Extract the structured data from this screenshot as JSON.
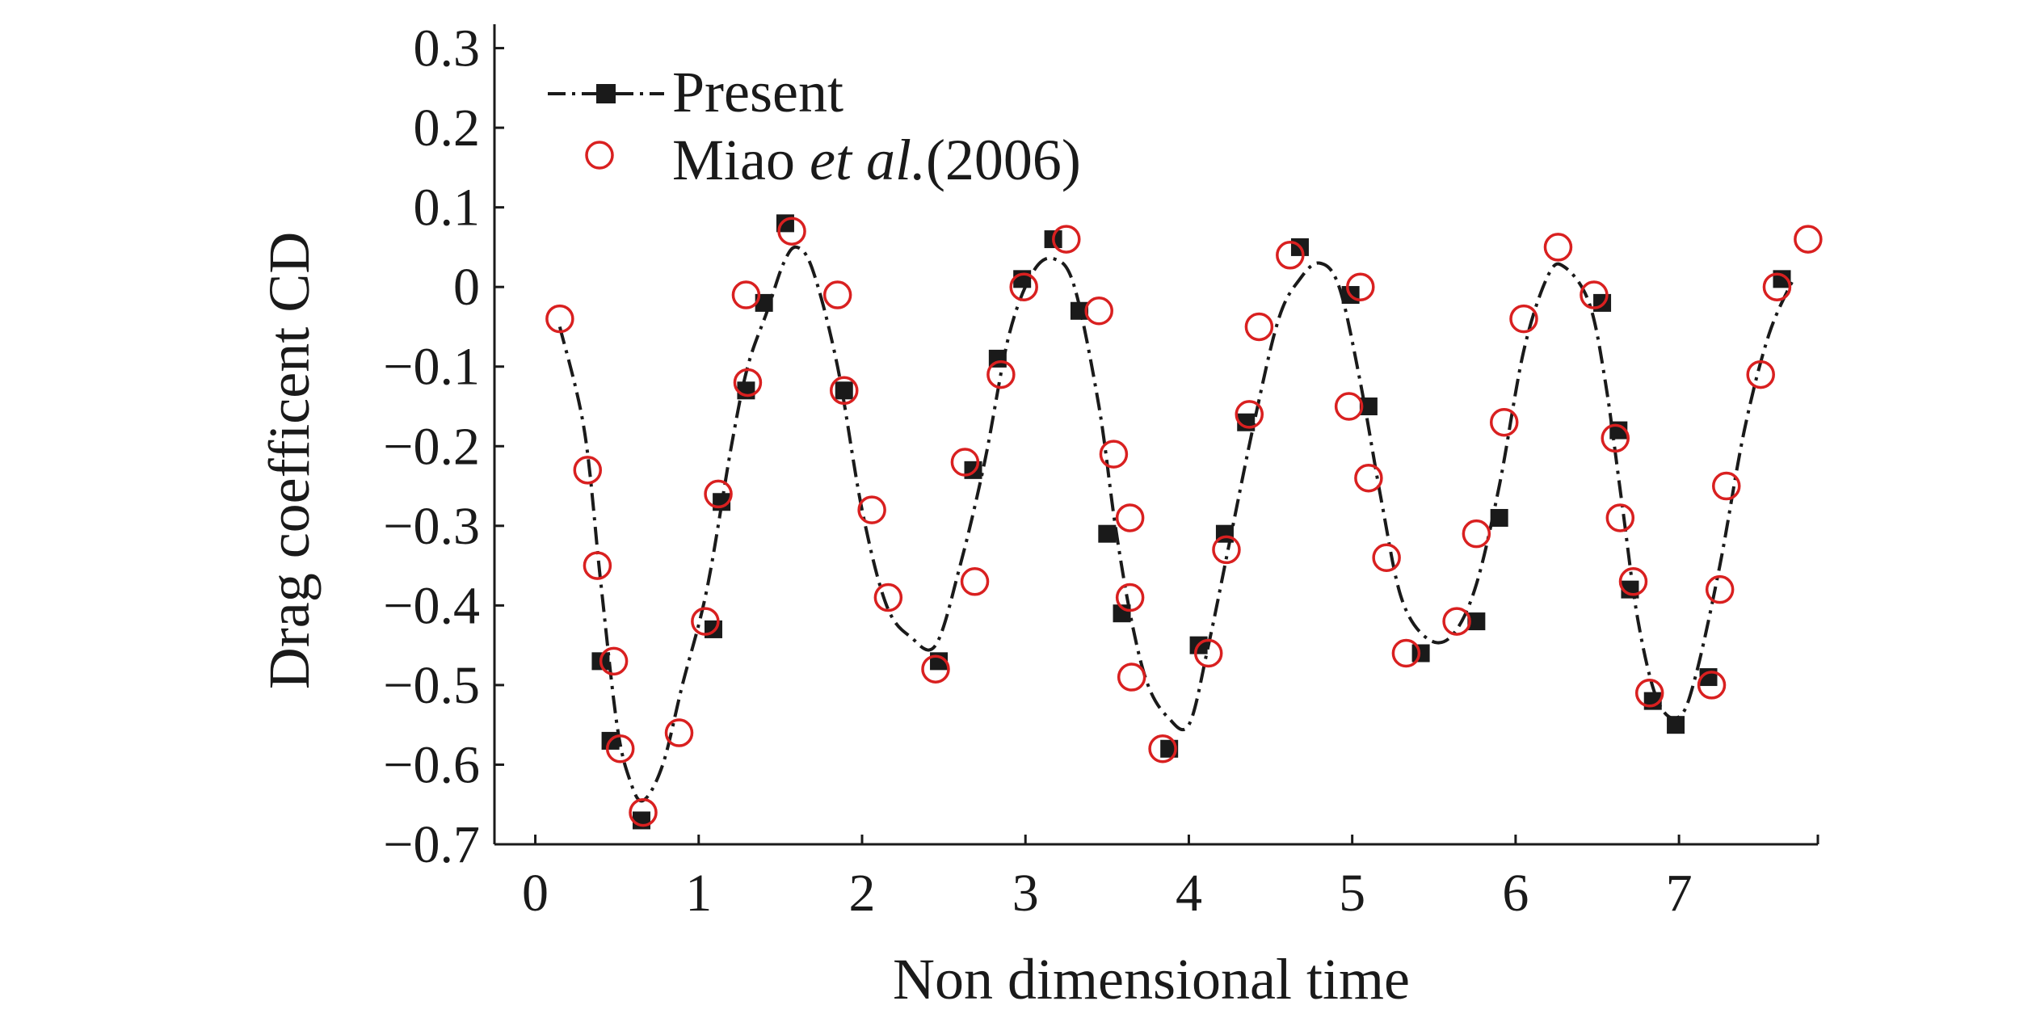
{
  "chart_data": {
    "type": "line",
    "title": "",
    "xlabel": "Non dimensional time",
    "ylabel": "Drag coefficent CD",
    "xlim": [
      -0.25,
      7.85
    ],
    "ylim": [
      -0.7,
      0.33
    ],
    "xticks": [
      0,
      1,
      2,
      3,
      4,
      5,
      6,
      7
    ],
    "xtick_labels": [
      "0",
      "1",
      "2",
      "3",
      "4",
      "5",
      "6",
      "7"
    ],
    "yticks": [
      0.3,
      0.2,
      0.1,
      0,
      -0.1,
      -0.2,
      -0.3,
      -0.4,
      -0.5,
      -0.6,
      -0.7
    ],
    "ytick_labels": [
      "0.3",
      "0.2",
      "0.1",
      "0",
      "−0.1",
      "−0.2",
      "−0.3",
      "−0.4",
      "−0.5",
      "−0.6",
      "−0.7"
    ],
    "legend_position": "top-left",
    "series": [
      {
        "name": "Present",
        "style": "dash-dot line with filled square markers",
        "color": "#1a1a1a",
        "curve_x": [
          0.15,
          0.3,
          0.4,
          0.5,
          0.58,
          0.66,
          0.78,
          0.9,
          1.05,
          1.2,
          1.3,
          1.42,
          1.52,
          1.6,
          1.7,
          1.85,
          2.0,
          2.15,
          2.3,
          2.45,
          2.6,
          2.75,
          2.9,
          3.05,
          3.18,
          3.3,
          3.45,
          3.55,
          3.65,
          3.75,
          3.87,
          4.0,
          4.12,
          4.25,
          4.4,
          4.55,
          4.68,
          4.8,
          4.92,
          5.05,
          5.18,
          5.3,
          5.45,
          5.6,
          5.75,
          5.9,
          6.05,
          6.2,
          6.3,
          6.45,
          6.55,
          6.65,
          6.75,
          6.87,
          7.0,
          7.1,
          7.25,
          7.4,
          7.55,
          7.7
        ],
        "curve_y": [
          -0.05,
          -0.18,
          -0.37,
          -0.55,
          -0.62,
          -0.645,
          -0.6,
          -0.5,
          -0.38,
          -0.2,
          -0.1,
          -0.03,
          0.03,
          0.05,
          0.02,
          -0.1,
          -0.28,
          -0.4,
          -0.44,
          -0.45,
          -0.35,
          -0.22,
          -0.06,
          0.02,
          0.035,
          0.0,
          -0.15,
          -0.3,
          -0.42,
          -0.5,
          -0.54,
          -0.55,
          -0.45,
          -0.32,
          -0.17,
          -0.04,
          0.01,
          0.03,
          0.0,
          -0.12,
          -0.27,
          -0.39,
          -0.44,
          -0.44,
          -0.38,
          -0.25,
          -0.08,
          0.015,
          0.025,
          -0.02,
          -0.12,
          -0.27,
          -0.42,
          -0.52,
          -0.54,
          -0.49,
          -0.35,
          -0.18,
          -0.06,
          0.01
        ],
        "markers_x": [
          0.4,
          0.46,
          0.65,
          1.09,
          1.14,
          1.29,
          1.4,
          1.53,
          1.89,
          2.47,
          2.68,
          2.83,
          2.98,
          3.17,
          3.33,
          3.5,
          3.59,
          3.88,
          4.06,
          4.22,
          4.35,
          4.68,
          4.99,
          5.1,
          5.42,
          5.76,
          5.9,
          6.53,
          6.63,
          6.7,
          6.84,
          6.98,
          7.18,
          7.63
        ],
        "markers_y": [
          -0.47,
          -0.57,
          -0.67,
          -0.43,
          -0.27,
          -0.13,
          -0.02,
          0.08,
          -0.13,
          -0.47,
          -0.23,
          -0.09,
          0.01,
          0.06,
          -0.03,
          -0.31,
          -0.41,
          -0.58,
          -0.45,
          -0.31,
          -0.17,
          0.05,
          -0.01,
          -0.15,
          -0.46,
          -0.42,
          -0.29,
          -0.02,
          -0.18,
          -0.38,
          -0.52,
          -0.55,
          -0.49,
          0.01
        ]
      },
      {
        "name": "Miao et al.(2006)",
        "name_parts": [
          "Miao ",
          "et al.",
          "(2006)"
        ],
        "style": "open circle markers",
        "color": "#d92020",
        "x": [
          0.15,
          0.32,
          0.38,
          0.48,
          0.52,
          0.66,
          0.88,
          1.04,
          1.12,
          1.29,
          1.3,
          1.57,
          1.85,
          1.89,
          2.06,
          2.16,
          2.45,
          2.63,
          2.69,
          2.85,
          2.99,
          3.25,
          3.45,
          3.54,
          3.64,
          3.64,
          3.65,
          3.84,
          4.12,
          4.23,
          4.37,
          4.43,
          4.62,
          4.98,
          5.05,
          5.1,
          5.21,
          5.33,
          5.64,
          5.76,
          5.93,
          6.05,
          6.26,
          6.48,
          6.61,
          6.64,
          6.72,
          6.82,
          7.2,
          7.25,
          7.29,
          7.5,
          7.6,
          7.79
        ],
        "y": [
          -0.04,
          -0.23,
          -0.35,
          -0.47,
          -0.58,
          -0.66,
          -0.56,
          -0.42,
          -0.26,
          -0.01,
          -0.12,
          0.07,
          -0.01,
          -0.13,
          -0.28,
          -0.39,
          -0.48,
          -0.22,
          -0.37,
          -0.11,
          0.0,
          0.06,
          -0.03,
          -0.21,
          -0.29,
          -0.39,
          -0.49,
          -0.58,
          -0.46,
          -0.33,
          -0.16,
          -0.05,
          0.04,
          -0.15,
          0.0,
          -0.24,
          -0.34,
          -0.46,
          -0.42,
          -0.31,
          -0.17,
          -0.04,
          0.05,
          -0.01,
          -0.19,
          -0.29,
          -0.37,
          -0.51,
          -0.5,
          -0.38,
          -0.25,
          -0.11,
          0.0,
          0.06
        ]
      }
    ]
  }
}
